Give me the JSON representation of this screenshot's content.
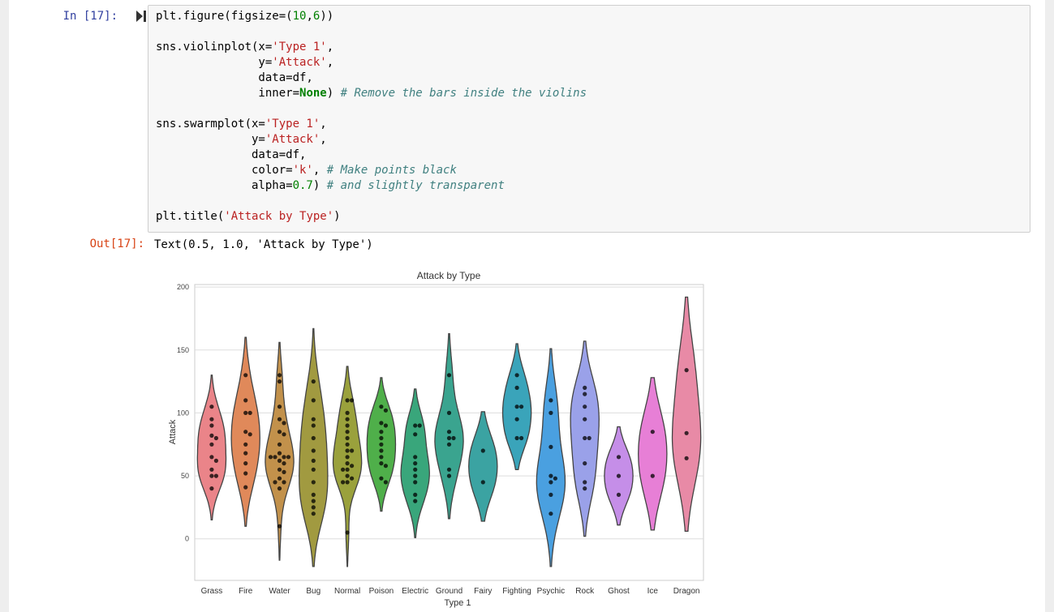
{
  "cell": {
    "in_prompt": "In [17]:",
    "out_prompt": "Out[17]:",
    "code_lines": [
      "plt.figure(figsize=(10,6))",
      "",
      "sns.violinplot(x='Type 1',",
      "               y='Attack',",
      "               data=df,",
      "               inner=None) # Remove the bars inside the violins",
      "",
      "sns.swarmplot(x='Type 1',",
      "              y='Attack',",
      "              data=df,",
      "              color='k', # Make points black",
      "              alpha=0.7) # and slightly transparent",
      "",
      "plt.title('Attack by Type')"
    ],
    "output_text": "Text(0.5, 1.0, 'Attack by Type')"
  },
  "chart_data": {
    "type": "violin",
    "title": "Attack by Type",
    "xlabel": "Type 1",
    "ylabel": "Attack",
    "ylim": [
      -33,
      202
    ],
    "yticks": [
      0,
      50,
      100,
      150,
      200
    ],
    "grid": true,
    "categories": [
      "Grass",
      "Fire",
      "Water",
      "Bug",
      "Normal",
      "Poison",
      "Electric",
      "Ground",
      "Fairy",
      "Fighting",
      "Psychic",
      "Rock",
      "Ghost",
      "Ice",
      "Dragon"
    ],
    "colors": [
      "#ea8489",
      "#e0895a",
      "#c2914b",
      "#a19a40",
      "#9aa13c",
      "#4faf4a",
      "#39a67b",
      "#3aa48f",
      "#3ba3a2",
      "#3aa4ba",
      "#4aa0e0",
      "#9aa1e9",
      "#c58ee8",
      "#e77fd6",
      "#e88aa6"
    ],
    "series": [
      {
        "name": "Grass",
        "min": 15,
        "max": 130,
        "points": [
          105,
          95,
          90,
          82,
          80,
          75,
          65,
          62,
          55,
          50,
          50,
          40
        ]
      },
      {
        "name": "Fire",
        "min": 10,
        "max": 160,
        "points": [
          130,
          110,
          100,
          100,
          85,
          83,
          75,
          68,
          60,
          52,
          41
        ]
      },
      {
        "name": "Water",
        "min": -17,
        "max": 156,
        "points": [
          130,
          125,
          105,
          95,
          92,
          85,
          83,
          75,
          68,
          65,
          65,
          65,
          65,
          62,
          60,
          55,
          53,
          48,
          45,
          45,
          40,
          10
        ]
      },
      {
        "name": "Bug",
        "min": -22,
        "max": 167,
        "points": [
          125,
          110,
          95,
          90,
          80,
          70,
          62,
          55,
          45,
          35,
          30,
          25,
          20
        ]
      },
      {
        "name": "Normal",
        "min": -22,
        "max": 137,
        "points": [
          110,
          110,
          100,
          95,
          90,
          85,
          80,
          75,
          70,
          70,
          65,
          60,
          58,
          55,
          55,
          50,
          48,
          45,
          45,
          5
        ]
      },
      {
        "name": "Poison",
        "min": 22,
        "max": 128,
        "points": [
          105,
          102,
          92,
          90,
          85,
          80,
          75,
          70,
          65,
          60,
          58,
          48,
          45
        ]
      },
      {
        "name": "Electric",
        "min": 1,
        "max": 119,
        "points": [
          90,
          90,
          83,
          65,
          60,
          55,
          50,
          45,
          35,
          30
        ]
      },
      {
        "name": "Ground",
        "min": 16,
        "max": 163,
        "points": [
          130,
          100,
          85,
          80,
          80,
          75,
          55,
          50
        ]
      },
      {
        "name": "Fairy",
        "min": 14,
        "max": 101,
        "points": [
          70,
          45
        ]
      },
      {
        "name": "Fighting",
        "min": 55,
        "max": 155,
        "points": [
          130,
          120,
          105,
          105,
          95,
          80,
          80
        ]
      },
      {
        "name": "Psychic",
        "min": -22,
        "max": 151,
        "points": [
          110,
          100,
          73,
          50,
          48,
          45,
          35,
          20
        ]
      },
      {
        "name": "Rock",
        "min": 2,
        "max": 157,
        "points": [
          120,
          115,
          105,
          95,
          80,
          80,
          60,
          45,
          40
        ]
      },
      {
        "name": "Ghost",
        "min": 11,
        "max": 89,
        "points": [
          65,
          50,
          35
        ]
      },
      {
        "name": "Ice",
        "min": 7,
        "max": 128,
        "points": [
          85,
          50
        ]
      },
      {
        "name": "Dragon",
        "min": 6,
        "max": 192,
        "points": [
          134,
          84,
          64
        ]
      }
    ]
  }
}
